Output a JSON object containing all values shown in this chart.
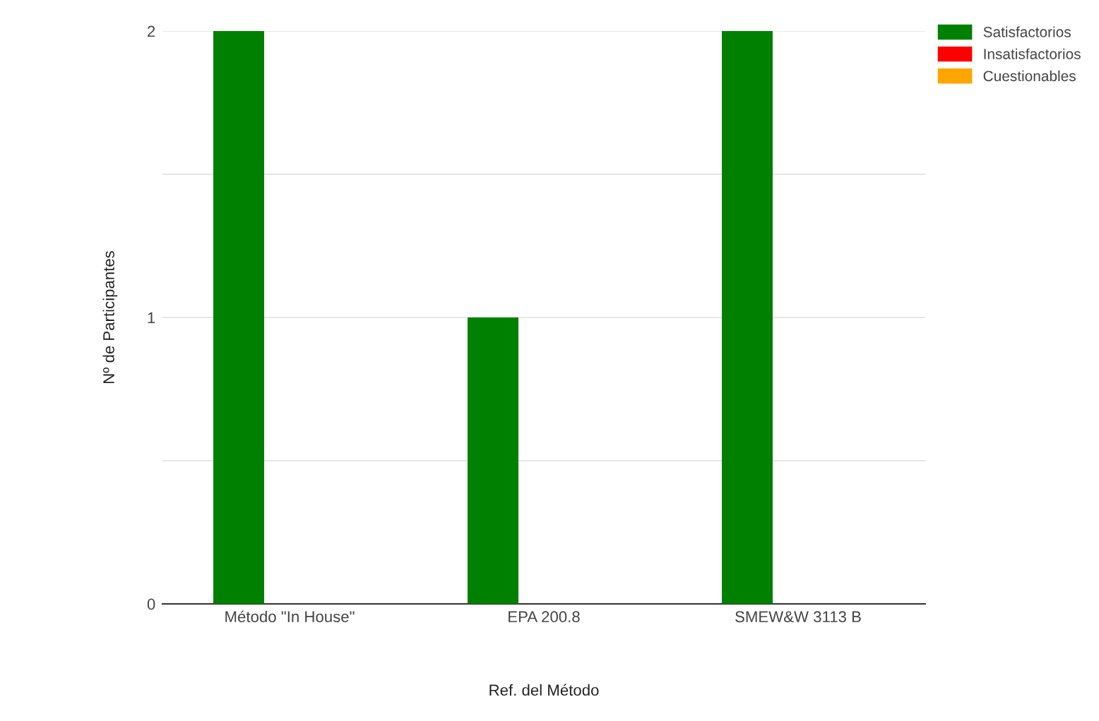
{
  "chart_data": {
    "type": "bar",
    "xlabel": "Ref. del Método",
    "ylabel": "Nº de Participantes",
    "categories": [
      "Método \"In House\"",
      "EPA 200.8",
      "SMEW&W 3113 B"
    ],
    "series": [
      {
        "name": "Satisfactorios",
        "color": "#008000",
        "values": [
          2,
          1,
          2
        ]
      },
      {
        "name": "Insatisfactorios",
        "color": "#ff0000",
        "values": [
          0,
          0,
          0
        ]
      },
      {
        "name": "Cuestionables",
        "color": "#ffa500",
        "values": [
          0,
          0,
          0
        ]
      }
    ],
    "ylim": [
      0,
      2
    ],
    "yticks": [
      0,
      {
        "value": 0.5,
        "label": null
      },
      1,
      {
        "value": 1.5,
        "label": null
      },
      2
    ],
    "grid": "y",
    "legend": "top right"
  }
}
